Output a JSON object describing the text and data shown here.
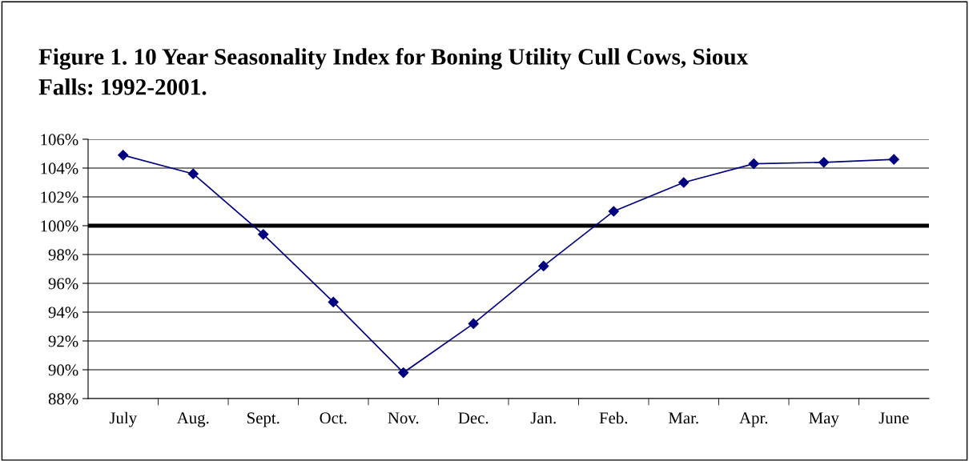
{
  "chart_data": {
    "type": "line",
    "title": "Figure 1. 10 Year Seasonality Index for Boning Utility Cull Cows, Sioux\nFalls: 1992-2001.",
    "categories": [
      "July",
      "Aug.",
      "Sept.",
      "Oct.",
      "Nov.",
      "Dec.",
      "Jan.",
      "Feb.",
      "Mar.",
      "Apr.",
      "May",
      "June"
    ],
    "series": [
      {
        "color": "#000080",
        "values": [
          104.9,
          103.6,
          99.4,
          94.7,
          89.8,
          93.2,
          97.2,
          101.0,
          103.0,
          104.3,
          104.4,
          104.6
        ]
      }
    ],
    "ylim": [
      88,
      106
    ],
    "yticks": [
      {
        "value": 88,
        "label": "88%"
      },
      {
        "value": 90,
        "label": "90%"
      },
      {
        "value": 92,
        "label": "92%"
      },
      {
        "value": 94,
        "label": "94%"
      },
      {
        "value": 96,
        "label": "96%"
      },
      {
        "value": 98,
        "label": "98%"
      },
      {
        "value": 100,
        "label": "100%"
      },
      {
        "value": 102,
        "label": "102%"
      },
      {
        "value": 104,
        "label": "104%"
      },
      {
        "value": 106,
        "label": "106%"
      }
    ],
    "ref_lines": [
      {
        "axis": "y",
        "value": 100,
        "color": "#000000"
      }
    ],
    "grid": "y",
    "marker": "diamond",
    "line_style": "solid",
    "legend": false
  }
}
